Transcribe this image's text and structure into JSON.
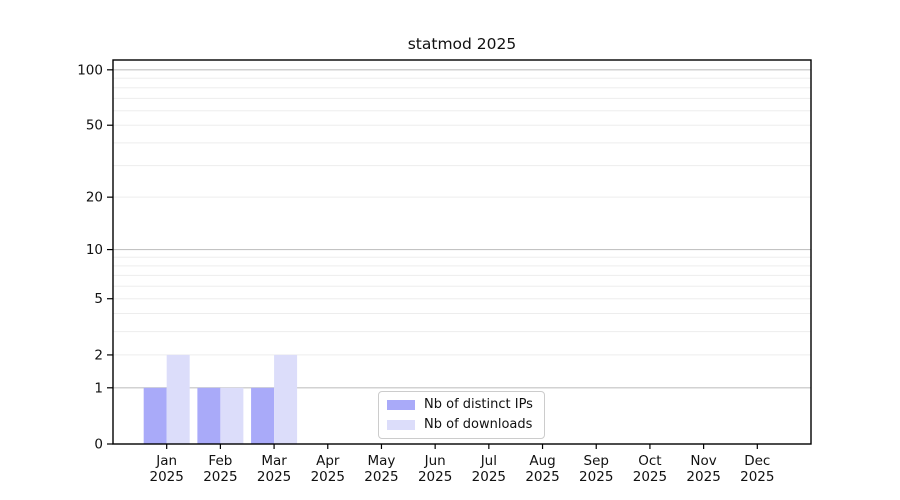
{
  "chart_data": {
    "type": "bar",
    "title": "statmod 2025",
    "categories": [
      "Jan",
      "Feb",
      "Mar",
      "Apr",
      "May",
      "Jun",
      "Jul",
      "Aug",
      "Sep",
      "Oct",
      "Nov",
      "Dec"
    ],
    "category_year": "2025",
    "series": [
      {
        "name": "Nb of distinct IPs",
        "color": "#a9aaf9",
        "values": [
          1,
          1,
          1,
          0,
          0,
          0,
          0,
          0,
          0,
          0,
          0,
          0
        ]
      },
      {
        "name": "Nb of downloads",
        "color": "#dcddfa",
        "values": [
          2,
          1,
          2,
          0,
          0,
          0,
          0,
          0,
          0,
          0,
          0,
          0
        ]
      }
    ],
    "yscale": "log1p",
    "ylim": [
      0,
      113
    ],
    "y_ticks": [
      0,
      1,
      2,
      5,
      10,
      20,
      50,
      100
    ],
    "grid": true,
    "grid_major_values": [
      1,
      10,
      100
    ],
    "grid_minor_values": [
      2,
      3,
      4,
      5,
      6,
      7,
      8,
      9,
      20,
      30,
      40,
      50,
      60,
      70,
      80,
      90
    ],
    "legend_position": "inside-bottom-center",
    "axis_color": "#000000",
    "grid_major_color": "#c3c3c3",
    "grid_minor_color": "#ededed",
    "text_color": "#111111"
  }
}
